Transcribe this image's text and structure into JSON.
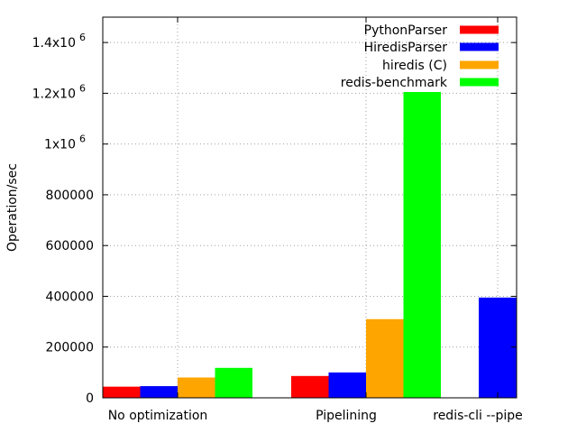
{
  "chart_data": {
    "type": "bar",
    "title": "",
    "xlabel": "",
    "ylabel": "Operation/sec",
    "ylim": [
      0,
      1500000
    ],
    "grid": true,
    "legend_position": "top-right",
    "categories": [
      "No optimization",
      "Pipelining",
      "redis-cli --pipe"
    ],
    "y_ticks": [
      {
        "value": 0,
        "label": "0",
        "exp": ""
      },
      {
        "value": 200000,
        "label": "200000",
        "exp": ""
      },
      {
        "value": 400000,
        "label": "400000",
        "exp": ""
      },
      {
        "value": 600000,
        "label": "600000",
        "exp": ""
      },
      {
        "value": 800000,
        "label": "800000",
        "exp": ""
      },
      {
        "value": 1000000,
        "label": "1x10",
        "exp": "6"
      },
      {
        "value": 1200000,
        "label": "1.2x10",
        "exp": "6"
      },
      {
        "value": 1400000,
        "label": "1.4x10",
        "exp": "6"
      }
    ],
    "series": [
      {
        "name": "PythonParser",
        "color": "#ff0000",
        "values": [
          44000,
          86000,
          null
        ]
      },
      {
        "name": "HiredisParser",
        "color": "#0000ff",
        "values": [
          46000,
          100000,
          395000
        ]
      },
      {
        "name": "hiredis (C)",
        "color": "#ffa500",
        "values": [
          80000,
          310000,
          null
        ]
      },
      {
        "name": "redis-benchmark",
        "color": "#00ff00",
        "values": [
          118000,
          1205000,
          null
        ]
      }
    ]
  }
}
